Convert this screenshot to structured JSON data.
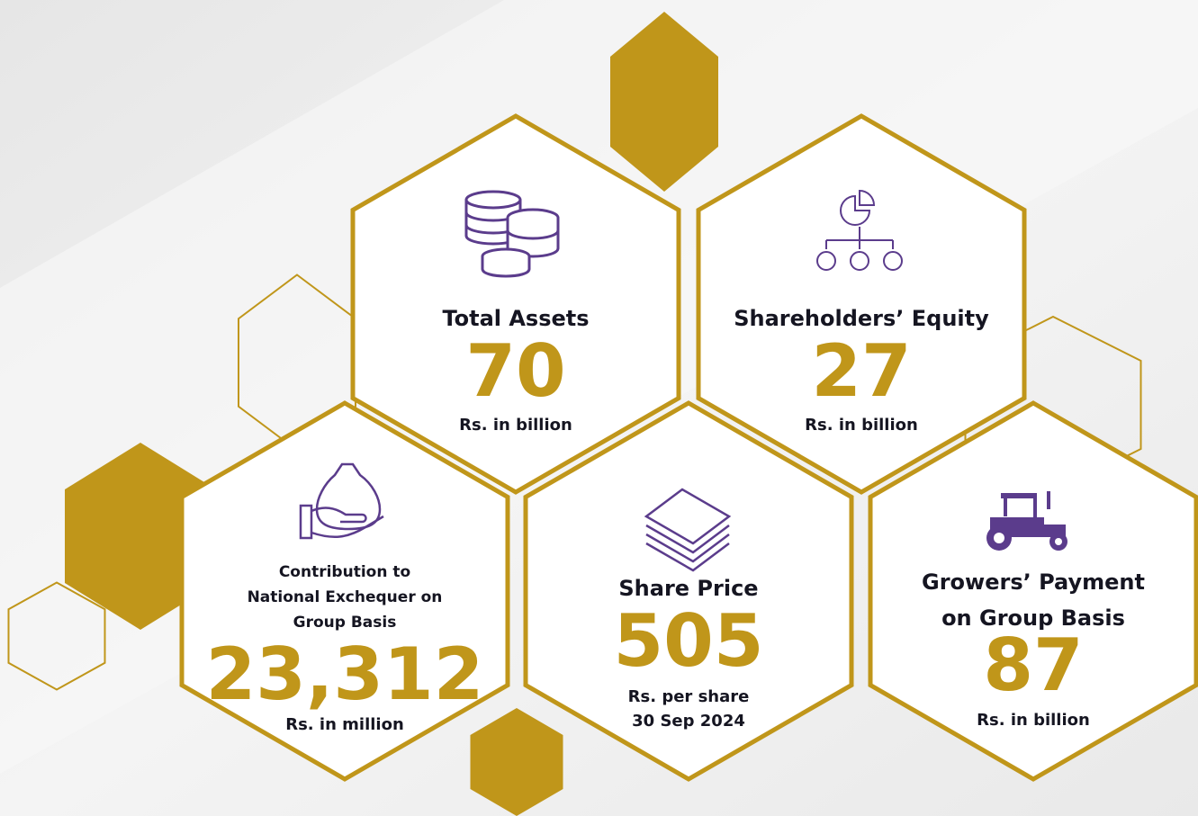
{
  "cards": [
    {
      "title": [
        "Total Assets"
      ],
      "value": "70",
      "unit": [
        "Rs. in billion"
      ]
    },
    {
      "title": [
        "Shareholders’ Equity"
      ],
      "value": "27",
      "unit": [
        "Rs. in billion"
      ]
    },
    {
      "title": [
        "Contribution to",
        "National Exchequer on",
        "Group Basis"
      ],
      "value": "23,312",
      "unit": [
        "Rs. in million"
      ]
    },
    {
      "title": [
        "Share Price"
      ],
      "value": "505",
      "unit": [
        "Rs. per share",
        "30 Sep 2024"
      ]
    },
    {
      "title": [
        "Growers’ Payment",
        "on Group Basis"
      ],
      "value": "87",
      "unit": [
        "Rs. in billion"
      ]
    }
  ]
}
